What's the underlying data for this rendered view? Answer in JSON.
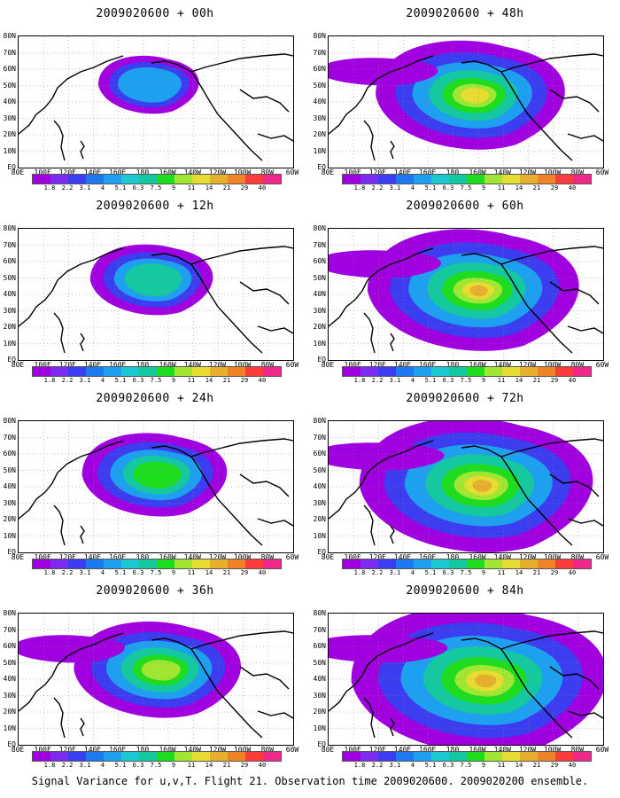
{
  "caption": "Signal Variance for u,v,T. Flight 21. Observation time 2009020600. 2009020200 ensemble.",
  "panels": [
    {
      "title": "2009020600 + 00h",
      "level": 0
    },
    {
      "title": "2009020600 + 48h",
      "level": 4
    },
    {
      "title": "2009020600 + 12h",
      "level": 1
    },
    {
      "title": "2009020600 + 60h",
      "level": 5
    },
    {
      "title": "2009020600 + 24h",
      "level": 2
    },
    {
      "title": "2009020600 + 72h",
      "level": 6
    },
    {
      "title": "2009020600 + 36h",
      "level": 3
    },
    {
      "title": "2009020600 + 84h",
      "level": 7
    }
  ],
  "lat_labels": [
    "80N",
    "70N",
    "60N",
    "50N",
    "40N",
    "30N",
    "20N",
    "10N",
    "EQ"
  ],
  "lon_labels": [
    "80E",
    "100E",
    "120E",
    "140E",
    "160E",
    "180",
    "160W",
    "140W",
    "120W",
    "100W",
    "80W",
    "60W"
  ],
  "colorbar": {
    "labels": [
      "1.8",
      "2.2",
      "3.1",
      "4",
      "5.1",
      "6.3",
      "7.5",
      "9",
      "11",
      "14",
      "21",
      "29",
      "40"
    ],
    "colors": [
      "#a000e0",
      "#7b2cf0",
      "#3c3cf0",
      "#1e78f0",
      "#1ea0f0",
      "#1ec8d2",
      "#14c8a0",
      "#1edc1e",
      "#a0e632",
      "#e6dc32",
      "#e6af2d",
      "#f08228",
      "#fa3c3c",
      "#f0288c"
    ]
  }
}
